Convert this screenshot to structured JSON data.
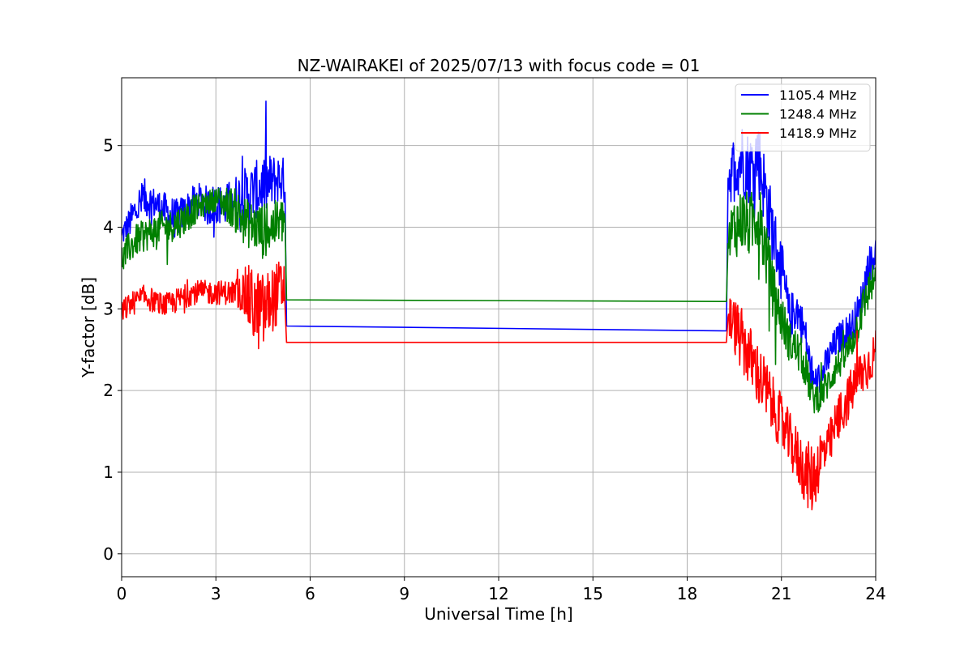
{
  "chart_data": {
    "type": "line",
    "title": "NZ-WAIRAKEI of 2025/07/13 with focus code = 01",
    "xlabel": "Universal Time [h]",
    "ylabel": "Y-factor [dB]",
    "xlim": [
      0,
      24
    ],
    "ylim": [
      -0.28,
      5.83
    ],
    "xticks": [
      0,
      3,
      6,
      9,
      12,
      15,
      18,
      21,
      24
    ],
    "yticks": [
      0,
      1,
      2,
      3,
      4,
      5
    ],
    "grid": true,
    "legend_position": "top-right",
    "series": [
      {
        "name": "1105.4 MHz",
        "color": "#0000ff",
        "x": [
          0,
          0.25,
          0.5,
          0.75,
          1.0,
          1.25,
          1.5,
          1.75,
          2.0,
          2.25,
          2.5,
          2.75,
          3.0,
          3.25,
          3.5,
          3.75,
          4.0,
          4.25,
          4.5,
          4.75,
          5.0,
          5.2,
          5.25,
          19.25,
          19.3,
          19.5,
          19.75,
          20.0,
          20.25,
          20.5,
          20.75,
          21.0,
          21.25,
          21.5,
          21.75,
          22.0,
          22.25,
          22.5,
          22.75,
          23.0,
          23.25,
          23.5,
          23.75,
          24.0
        ],
        "y": [
          3.9,
          4.05,
          4.25,
          4.35,
          4.3,
          4.25,
          4.15,
          4.1,
          4.2,
          4.3,
          4.35,
          4.25,
          4.3,
          4.25,
          4.3,
          4.35,
          4.4,
          4.45,
          4.5,
          4.55,
          4.6,
          4.55,
          2.79,
          2.73,
          4.6,
          4.75,
          4.85,
          4.7,
          4.9,
          4.4,
          3.9,
          3.5,
          2.9,
          3.0,
          2.7,
          2.1,
          2.15,
          2.4,
          2.6,
          2.7,
          2.8,
          3.0,
          3.5,
          3.7
        ],
        "spread": [
          0.15,
          0.2,
          0.25,
          0.25,
          0.2,
          0.2,
          0.25,
          0.25,
          0.2,
          0.2,
          0.2,
          0.25,
          0.25,
          0.25,
          0.3,
          0.35,
          0.35,
          0.35,
          0.4,
          0.35,
          0.3,
          0.3,
          0,
          0,
          0.35,
          0.4,
          0.45,
          0.45,
          0.5,
          0.45,
          0.4,
          0.35,
          0.3,
          0.25,
          0.25,
          0.2,
          0.2,
          0.2,
          0.2,
          0.2,
          0.2,
          0.25,
          0.25,
          0.2
        ]
      },
      {
        "name": "1248.4 MHz",
        "color": "#008000",
        "x": [
          0,
          0.25,
          0.5,
          0.75,
          1.0,
          1.25,
          1.5,
          1.75,
          2.0,
          2.25,
          2.5,
          2.75,
          3.0,
          3.25,
          3.5,
          3.75,
          4.0,
          4.25,
          4.5,
          4.75,
          5.0,
          5.2,
          5.25,
          19.25,
          19.3,
          19.5,
          19.75,
          20.0,
          20.25,
          20.5,
          20.75,
          21.0,
          21.25,
          21.5,
          21.75,
          22.0,
          22.25,
          22.5,
          22.75,
          23.0,
          23.25,
          23.5,
          23.75,
          24.0
        ],
        "y": [
          3.6,
          3.75,
          3.85,
          3.9,
          3.95,
          4.0,
          4.0,
          4.05,
          4.1,
          4.2,
          4.25,
          4.3,
          4.35,
          4.3,
          4.25,
          4.15,
          4.05,
          4.0,
          3.95,
          4.0,
          4.05,
          4.1,
          3.11,
          3.09,
          3.8,
          4.0,
          4.1,
          4.0,
          4.2,
          3.7,
          3.2,
          2.9,
          2.6,
          2.5,
          2.3,
          1.9,
          1.95,
          2.1,
          2.3,
          2.4,
          2.6,
          2.9,
          3.2,
          3.4
        ],
        "spread": [
          0.2,
          0.2,
          0.2,
          0.2,
          0.2,
          0.2,
          0.2,
          0.2,
          0.2,
          0.2,
          0.15,
          0.15,
          0.15,
          0.2,
          0.25,
          0.3,
          0.3,
          0.3,
          0.35,
          0.3,
          0.3,
          0.3,
          0,
          0,
          0.35,
          0.4,
          0.4,
          0.4,
          0.45,
          0.4,
          0.35,
          0.3,
          0.25,
          0.25,
          0.25,
          0.2,
          0.2,
          0.2,
          0.2,
          0.2,
          0.2,
          0.25,
          0.25,
          0.2
        ]
      },
      {
        "name": "1418.9 MHz",
        "color": "#ff0000",
        "x": [
          0,
          0.25,
          0.5,
          0.75,
          1.0,
          1.25,
          1.5,
          1.75,
          2.0,
          2.25,
          2.5,
          2.75,
          3.0,
          3.25,
          3.5,
          3.75,
          4.0,
          4.25,
          4.5,
          4.75,
          5.0,
          5.2,
          5.25,
          19.25,
          19.3,
          19.5,
          19.75,
          20.0,
          20.25,
          20.5,
          20.75,
          21.0,
          21.25,
          21.5,
          21.75,
          22.0,
          22.25,
          22.5,
          22.75,
          23.0,
          23.25,
          23.5,
          23.75,
          24.0
        ],
        "y": [
          2.95,
          3.05,
          3.1,
          3.15,
          3.1,
          3.05,
          3.05,
          3.1,
          3.15,
          3.2,
          3.2,
          3.2,
          3.2,
          3.2,
          3.2,
          3.2,
          3.15,
          3.0,
          2.95,
          3.1,
          3.2,
          3.3,
          2.59,
          2.59,
          2.9,
          2.8,
          2.6,
          2.4,
          2.2,
          2.0,
          1.8,
          1.6,
          1.4,
          1.2,
          1.0,
          0.9,
          1.2,
          1.3,
          1.6,
          1.8,
          2.0,
          2.2,
          2.3,
          2.5
        ],
        "spread": [
          0.15,
          0.15,
          0.15,
          0.15,
          0.15,
          0.15,
          0.15,
          0.15,
          0.15,
          0.15,
          0.15,
          0.15,
          0.15,
          0.15,
          0.15,
          0.2,
          0.4,
          0.5,
          0.5,
          0.4,
          0.4,
          0.35,
          0,
          0,
          0.3,
          0.35,
          0.4,
          0.4,
          0.4,
          0.4,
          0.35,
          0.35,
          0.35,
          0.35,
          0.4,
          0.45,
          0.35,
          0.3,
          0.3,
          0.3,
          0.3,
          0.3,
          0.3,
          0.25
        ]
      }
    ]
  }
}
